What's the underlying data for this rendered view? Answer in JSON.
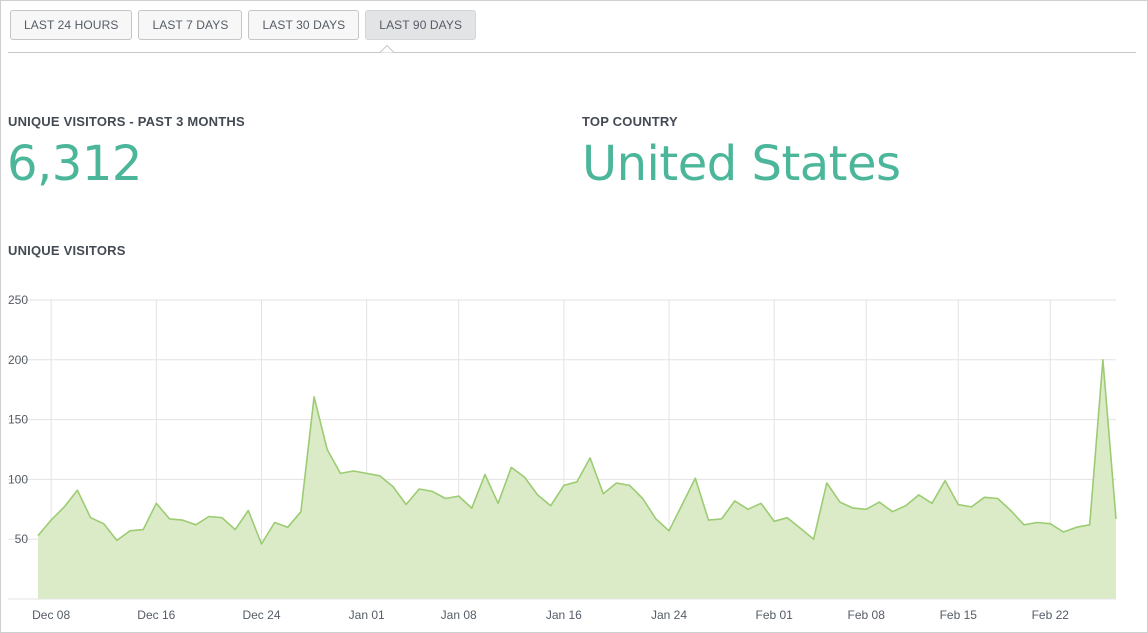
{
  "tabs": [
    {
      "label": "LAST 24 HOURS",
      "active": false
    },
    {
      "label": "LAST 7 DAYS",
      "active": false
    },
    {
      "label": "LAST 30 DAYS",
      "active": false
    },
    {
      "label": "LAST 90 DAYS",
      "active": true
    }
  ],
  "stats": {
    "visitors_label": "UNIQUE VISITORS - PAST 3 MONTHS",
    "visitors_value": "6,312",
    "country_label": "TOP COUNTRY",
    "country_value": "United States"
  },
  "chart_title": "UNIQUE VISITORS",
  "colors": {
    "accent": "#4bb69a",
    "area_fill": "#dcebc7",
    "area_line": "#9ccc72",
    "grid": "#e3e3e3"
  },
  "chart_data": {
    "type": "area",
    "ylim": [
      0,
      250
    ],
    "yticks": [
      50,
      100,
      150,
      200,
      250
    ],
    "xtick_labels": [
      "Dec 08",
      "Dec 16",
      "Dec 24",
      "Jan 01",
      "Jan 08",
      "Jan 16",
      "Jan 24",
      "Feb 01",
      "Feb 08",
      "Feb 15",
      "Feb 22"
    ],
    "xtick_index": [
      1,
      9,
      17,
      25,
      32,
      40,
      48,
      56,
      63,
      70,
      77
    ],
    "series": [
      {
        "values": [
          53,
          66,
          77,
          91,
          68,
          63,
          49,
          57,
          58,
          80,
          67,
          66,
          62,
          69,
          68,
          58,
          74,
          46,
          64,
          60,
          73,
          169,
          125,
          105,
          107,
          105,
          103,
          94,
          79,
          92,
          90,
          84,
          86,
          76,
          104,
          80,
          110,
          102,
          87,
          78,
          95,
          98,
          118,
          88,
          97,
          95,
          84,
          67,
          57,
          79,
          101,
          66,
          67,
          82,
          75,
          80,
          65,
          68,
          59,
          50,
          97,
          81,
          76,
          75,
          81,
          73,
          78,
          87,
          80,
          99,
          79,
          77,
          85,
          84,
          74,
          62,
          64,
          63,
          56,
          60,
          62,
          200,
          67
        ]
      }
    ]
  }
}
